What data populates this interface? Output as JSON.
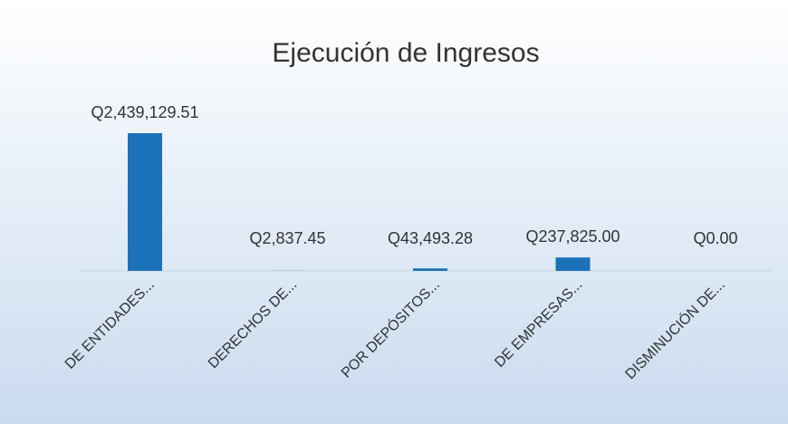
{
  "chart_data": {
    "type": "bar",
    "title": "Ejecución de Ingresos",
    "categories": [
      "DE ENTIDADES...",
      "DERECHOS DE...",
      "POR DEPÓSITOS...",
      "DE EMPRESAS...",
      "DISMINUCIÓN DE..."
    ],
    "values": [
      2439129.51,
      2837.45,
      43493.28,
      237825.0,
      0.0
    ],
    "value_labels": [
      "Q2,439,129.51",
      "Q2,837.45",
      "Q43,493.28",
      "Q237,825.00",
      "Q0.00"
    ],
    "color": "#1b72b8"
  }
}
